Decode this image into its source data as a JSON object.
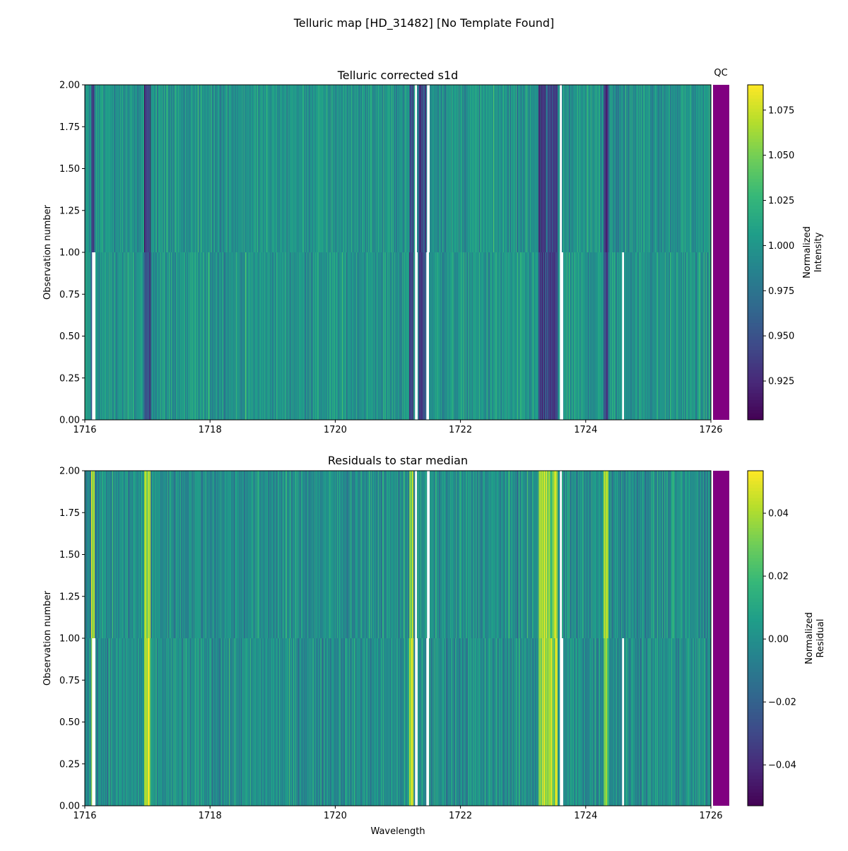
{
  "suptitle": "Telluric map [HD_31482] [No Template Found]",
  "qc_label": "QC",
  "qc_color": "#800080",
  "colormap": "viridis",
  "chart_data": [
    {
      "type": "heatmap",
      "title": "Telluric corrected s1d",
      "xlabel": "",
      "ylabel": "Observation number",
      "xlim": [
        1716,
        1726
      ],
      "ylim": [
        0,
        2
      ],
      "xticks": [
        "1716",
        "1718",
        "1720",
        "1722",
        "1724",
        "1726"
      ],
      "yticks": [
        "0.00",
        "0.25",
        "0.50",
        "0.75",
        "1.00",
        "1.25",
        "1.50",
        "1.75",
        "2.00"
      ],
      "rows": [
        0,
        1
      ],
      "colorbar": {
        "label": [
          "Normalized",
          "Intensity"
        ],
        "range": [
          0.9035,
          1.089
        ],
        "ticks": [
          "0.925",
          "0.950",
          "0.975",
          "1.000",
          "1.025",
          "1.050",
          "1.075"
        ]
      },
      "baseline": 1.0,
      "spread": 0.035,
      "gaps": {
        "row0": [
          [
            1716.11,
            1716.17
          ],
          [
            1721.27,
            1721.32
          ],
          [
            1721.45,
            1721.5
          ],
          [
            1723.58,
            1723.64
          ],
          [
            1724.58,
            1724.61
          ]
        ],
        "row1": [
          [
            1721.27,
            1721.3
          ],
          [
            1721.46,
            1721.51
          ],
          [
            1723.58,
            1723.62
          ]
        ]
      },
      "absorption_features": [
        [
          1716.1,
          1716.16
        ],
        [
          1716.95,
          1717.05
        ],
        [
          1721.18,
          1721.25
        ],
        [
          1721.33,
          1721.45
        ],
        [
          1723.25,
          1723.55
        ],
        [
          1724.28,
          1724.36
        ]
      ],
      "feature_sign": -1
    },
    {
      "type": "heatmap",
      "title": "Residuals to star median",
      "xlabel": "Wavelength",
      "ylabel": "Observation number",
      "xlim": [
        1716,
        1726
      ],
      "ylim": [
        0,
        2
      ],
      "xticks": [
        "1716",
        "1718",
        "1720",
        "1722",
        "1724",
        "1726"
      ],
      "yticks": [
        "0.00",
        "0.25",
        "0.50",
        "0.75",
        "1.00",
        "1.25",
        "1.50",
        "1.75",
        "2.00"
      ],
      "rows": [
        0,
        1
      ],
      "colorbar": {
        "label": [
          "Normalized",
          "Residual"
        ],
        "range": [
          -0.053,
          0.0535
        ],
        "ticks": [
          "−0.04",
          "−0.02",
          "0.00",
          "0.02",
          "0.04"
        ],
        "tick_values": [
          -0.04,
          -0.02,
          0,
          0.02,
          0.04
        ]
      },
      "baseline": 0.0,
      "spread": 0.022,
      "gaps": {
        "row0": [
          [
            1716.11,
            1716.17
          ],
          [
            1721.27,
            1721.32
          ],
          [
            1721.45,
            1721.5
          ],
          [
            1723.58,
            1723.64
          ],
          [
            1724.58,
            1724.61
          ]
        ],
        "row1": [
          [
            1721.27,
            1721.3
          ],
          [
            1721.46,
            1721.51
          ],
          [
            1723.58,
            1723.62
          ]
        ]
      },
      "absorption_features": [
        [
          1716.1,
          1716.16
        ],
        [
          1716.95,
          1717.05
        ],
        [
          1721.18,
          1721.25
        ],
        [
          1723.25,
          1723.55
        ],
        [
          1724.28,
          1724.36
        ]
      ],
      "feature_sign": 1
    }
  ]
}
